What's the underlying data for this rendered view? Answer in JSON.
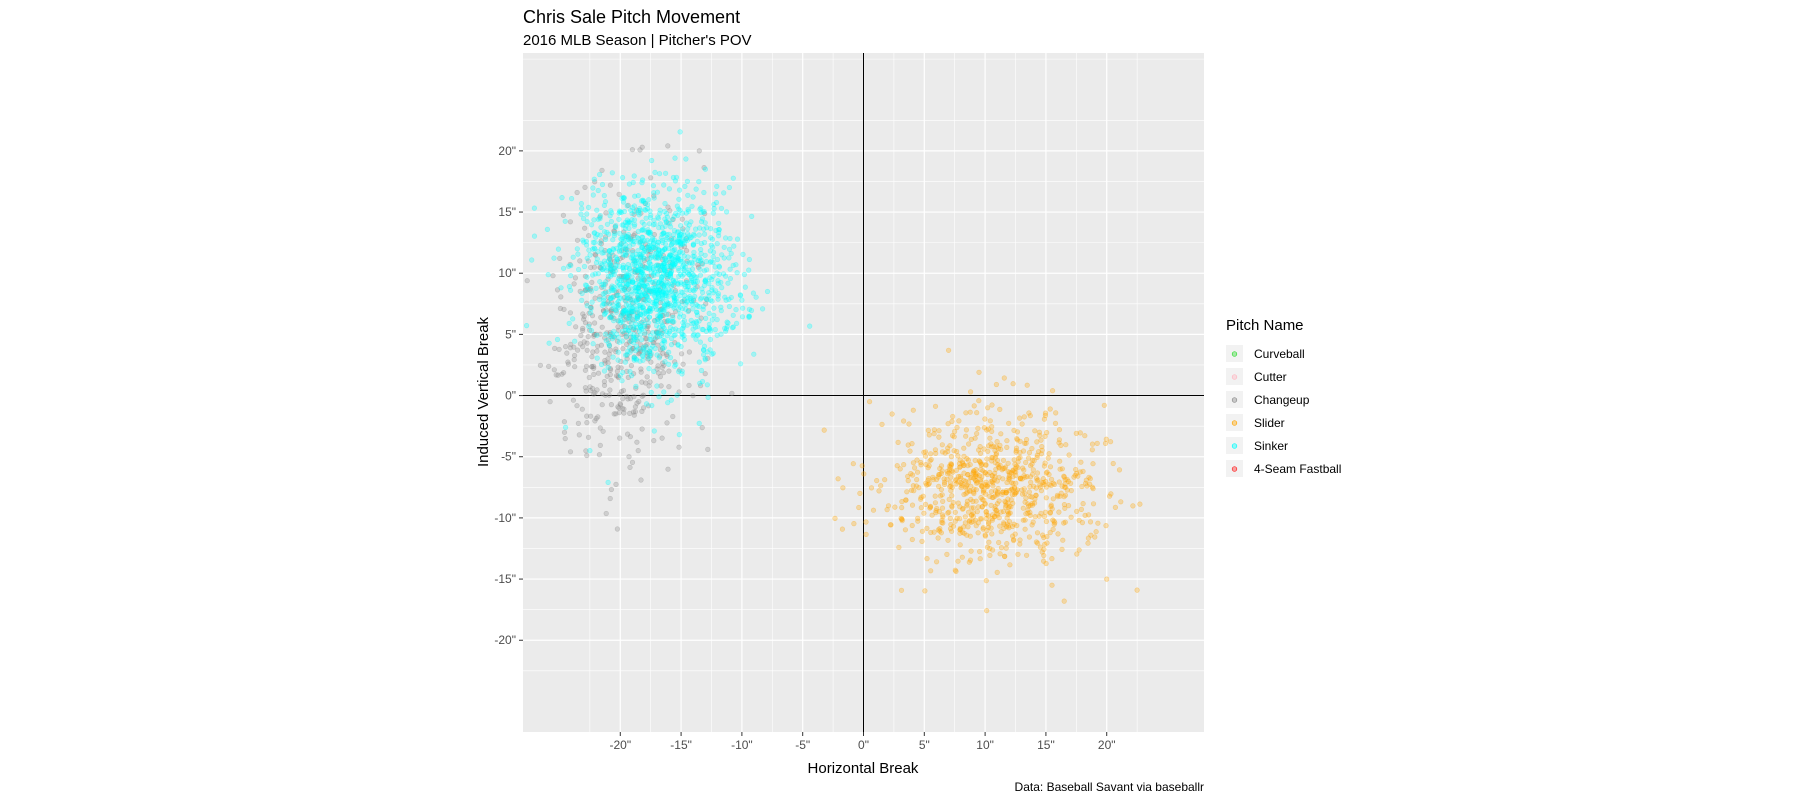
{
  "chart_data": {
    "type": "scatter",
    "title": "Chris Sale Pitch Movement",
    "subtitle": "2016 MLB Season | Pitcher's POV",
    "xlabel": "Horizontal Break",
    "ylabel": "Induced Vertical Break",
    "caption": "Data: Baseball Savant via baseballr",
    "xlim": [
      -28,
      28
    ],
    "ylim": [
      -27.5,
      28
    ],
    "x_ticks": [
      -20,
      -15,
      -10,
      -5,
      0,
      5,
      10,
      15,
      20
    ],
    "x_tick_labels": [
      "-20\"",
      "-15\"",
      "-10\"",
      "-5\"",
      "0\"",
      "5\"",
      "10\"",
      "15\"",
      "20\""
    ],
    "y_ticks": [
      20,
      15,
      10,
      5,
      0,
      -5,
      -10,
      -15,
      -20
    ],
    "y_tick_labels": [
      "20\"",
      "15\"",
      "10\"",
      "5\"",
      "0\"",
      "-5\"",
      "-10\"",
      "-15\"",
      "-20\""
    ],
    "grid": true,
    "reference_lines": {
      "x": 0,
      "y": 0
    },
    "legend": {
      "title": "Pitch Name",
      "placement": "right",
      "entries": [
        "Curveball",
        "Cutter",
        "Changeup",
        "Slider",
        "Sinker",
        "4-Seam Fastball"
      ]
    },
    "colors": {
      "Curveball": "#33dd33",
      "Cutter": "#ffb6c1",
      "Changeup": "#8a8a8a",
      "Slider": "#ffa500",
      "Sinker": "#00ffff",
      "4-Seam Fastball": "#ff2222"
    },
    "point_opacity": 0.3,
    "series": [
      {
        "name": "Changeup",
        "count": 520,
        "center": [
          -19.5,
          5.5
        ],
        "spread": [
          2.8,
          5.5
        ],
        "sample_points": [
          [
            -18.2,
            20.3
          ],
          [
            -19.0,
            20.1
          ],
          [
            -21.5,
            18.4
          ],
          [
            -13.5,
            20.0
          ],
          [
            -17.5,
            17.8
          ],
          [
            -12.8,
            -4.4
          ],
          [
            -18.3,
            -6.9
          ],
          [
            -24.5,
            4.0
          ],
          [
            -20.5,
            -1.5
          ],
          [
            -16.0,
            2.0
          ]
        ]
      },
      {
        "name": "Slider",
        "count": 820,
        "center": [
          10.5,
          -7.5
        ],
        "spread": [
          4.3,
          3.0
        ],
        "sample_points": [
          [
            7.0,
            3.7
          ],
          [
            9.5,
            1.9
          ],
          [
            0.5,
            -0.5
          ],
          [
            -0.3,
            -8.0
          ],
          [
            15.5,
            -15.5
          ],
          [
            16.5,
            -16.8
          ],
          [
            22.5,
            -15.9
          ],
          [
            19.8,
            -0.8
          ],
          [
            20.0,
            -15.0
          ],
          [
            12.0,
            -6.5
          ]
        ]
      },
      {
        "name": "Sinker",
        "count": 1350,
        "center": [
          -17.0,
          9.5
        ],
        "spread": [
          3.2,
          3.6
        ],
        "sample_points": [
          [
            -21.0,
            -7.1
          ],
          [
            -22.5,
            -4.5
          ],
          [
            -24.5,
            -2.6
          ],
          [
            -10.0,
            7.8
          ],
          [
            -13.0,
            18.5
          ],
          [
            -24.0,
            16.1
          ],
          [
            -18.0,
            12.0
          ],
          [
            -16.5,
            8.0
          ],
          [
            -20.0,
            15.0
          ],
          [
            -15.0,
            4.0
          ]
        ]
      }
    ]
  }
}
